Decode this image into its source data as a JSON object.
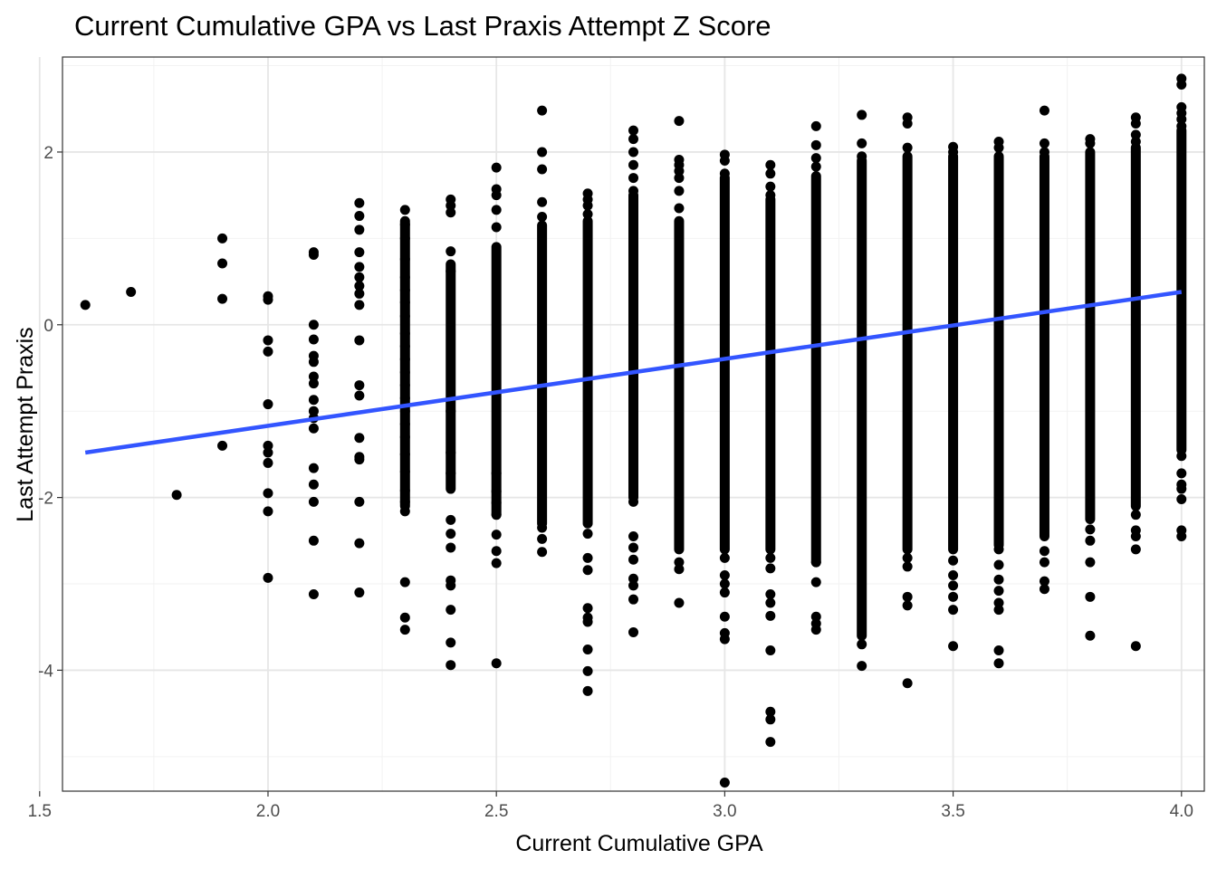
{
  "chart_data": {
    "type": "scatter",
    "title": "Current Cumulative GPA vs Last Praxis Attempt Z Score",
    "xlabel": "Current Cumulative GPA",
    "ylabel": "Last Attempt Praxis",
    "xlim": [
      1.55,
      4.05
    ],
    "ylim": [
      -5.4,
      3.1
    ],
    "x_ticks": [
      1.5,
      2.0,
      2.5,
      3.0,
      3.5,
      4.0
    ],
    "x_tick_labels": [
      "1.5",
      "2.0",
      "2.5",
      "3.0",
      "3.5",
      "4.0"
    ],
    "y_ticks": [
      -4,
      -2,
      0,
      2
    ],
    "y_tick_labels": [
      "-4",
      "-2",
      "0",
      "2"
    ],
    "grid": true,
    "point_color": "#000000",
    "trend_color": "#3355ff",
    "trend_line": {
      "x": [
        1.6,
        4.0
      ],
      "y": [
        -1.48,
        0.38
      ]
    },
    "columns": [
      {
        "x": 1.6,
        "points": [
          0.23
        ]
      },
      {
        "x": 1.7,
        "points": [
          0.38
        ]
      },
      {
        "x": 1.8,
        "points": [
          -1.97
        ]
      },
      {
        "x": 1.9,
        "points": [
          1.0,
          0.71,
          0.3,
          -1.4
        ]
      },
      {
        "x": 2.0,
        "points": [
          0.33,
          0.29,
          -0.18,
          -0.31,
          -0.92,
          -1.4,
          -1.48,
          -1.6,
          -1.95,
          -2.16,
          -2.93
        ]
      },
      {
        "x": 2.1,
        "points": [
          0.84,
          0.81,
          0.0,
          -0.17,
          -0.36,
          -0.43,
          -0.6,
          -0.68,
          -0.87,
          -1.0,
          -1.08,
          -1.2,
          -1.66,
          -1.85,
          -2.05,
          -2.5,
          -3.12
        ]
      },
      {
        "x": 2.2,
        "points": [
          1.41,
          1.26,
          1.1,
          0.84,
          0.67,
          0.55,
          0.45,
          0.36,
          0.23,
          -0.18,
          -0.7,
          -0.82,
          -1.31,
          -1.53,
          -1.56,
          -2.05,
          -2.53,
          -3.1
        ]
      },
      {
        "x": 2.3,
        "points": [
          1.33,
          1.16,
          1.0,
          0.76,
          0.55,
          0.4,
          0.26,
          0.1,
          -0.1,
          -0.25,
          -0.4,
          -0.55,
          -0.7,
          -0.85,
          -1.0,
          -1.15,
          -1.3,
          -1.5,
          -1.7,
          -1.92,
          -2.05,
          -2.16,
          -2.98,
          -3.39,
          -3.53
        ],
        "range": [
          -2.1,
          1.2
        ]
      },
      {
        "x": 2.4,
        "points": [
          1.45,
          1.38,
          1.3,
          0.85,
          0.62,
          -1.0,
          -1.48,
          -1.72,
          -2.26,
          -2.42,
          -2.58,
          -2.96,
          -3.02,
          -3.3,
          -3.68,
          -3.94
        ],
        "range": [
          -1.9,
          0.7
        ]
      },
      {
        "x": 2.5,
        "points": [
          1.82,
          1.57,
          1.5,
          1.33,
          1.13,
          -1.72,
          -1.93,
          -2.06,
          -2.2,
          -2.43,
          -2.62,
          -2.76,
          -3.92
        ],
        "range": [
          -2.2,
          0.9
        ]
      },
      {
        "x": 2.6,
        "points": [
          2.48,
          2.0,
          1.8,
          1.42,
          1.25,
          -2.35,
          -2.48,
          -2.63
        ],
        "range": [
          -2.3,
          1.15
        ]
      },
      {
        "x": 2.7,
        "points": [
          1.52,
          1.45,
          1.38,
          1.28,
          -2.42,
          -2.7,
          -2.84,
          -3.28,
          -3.39,
          -3.44,
          -3.76,
          -4.01,
          -4.24
        ],
        "range": [
          -2.3,
          1.2
        ]
      },
      {
        "x": 2.8,
        "points": [
          2.25,
          2.15,
          2.0,
          1.85,
          1.7,
          1.55,
          -2.05,
          -2.45,
          -2.58,
          -2.72,
          -2.94,
          -3.02,
          -3.18,
          -3.56
        ],
        "range": [
          -2.0,
          1.5
        ]
      },
      {
        "x": 2.9,
        "points": [
          2.36,
          1.91,
          1.85,
          1.78,
          1.7,
          1.55,
          1.35,
          -2.75,
          -2.83,
          -3.22
        ],
        "range": [
          -2.6,
          1.2
        ]
      },
      {
        "x": 3.0,
        "points": [
          1.97,
          1.9,
          1.75,
          -2.7,
          -2.9,
          -3.0,
          -3.1,
          -3.38,
          -3.57,
          -3.64,
          -5.3
        ],
        "range": [
          -2.6,
          1.7
        ]
      },
      {
        "x": 3.1,
        "points": [
          1.85,
          1.75,
          1.6,
          1.5,
          -2.7,
          -2.82,
          -3.12,
          -3.22,
          -3.37,
          -3.77,
          -4.48,
          -4.57,
          -4.83
        ],
        "range": [
          -2.6,
          1.45
        ]
      },
      {
        "x": 3.2,
        "points": [
          2.3,
          2.08,
          1.93,
          1.83,
          1.72,
          -2.75,
          -2.98,
          -3.38,
          -3.46,
          -3.53
        ],
        "range": [
          -2.75,
          1.7
        ]
      },
      {
        "x": 3.3,
        "points": [
          2.43,
          2.1,
          1.95,
          -3.7,
          -3.95
        ],
        "range": [
          -3.6,
          1.9
        ]
      },
      {
        "x": 3.4,
        "points": [
          2.4,
          2.33,
          2.05,
          -2.7,
          -2.8,
          -3.15,
          -3.25,
          -4.15
        ],
        "range": [
          -2.6,
          1.95
        ]
      },
      {
        "x": 3.5,
        "points": [
          2.06,
          2.0,
          -2.73,
          -2.9,
          -3.02,
          -3.15,
          -3.3,
          -3.72
        ],
        "range": [
          -2.6,
          1.95
        ]
      },
      {
        "x": 3.6,
        "points": [
          2.12,
          2.05,
          -2.6,
          -2.78,
          -2.95,
          -3.08,
          -3.22,
          -3.3,
          -3.77,
          -3.92
        ],
        "range": [
          -2.55,
          1.95
        ]
      },
      {
        "x": 3.7,
        "points": [
          2.48,
          2.1,
          2.0,
          -2.62,
          -2.75,
          -2.97,
          -3.06
        ],
        "range": [
          -2.45,
          1.95
        ]
      },
      {
        "x": 3.8,
        "points": [
          2.15,
          2.1,
          -2.37,
          -2.5,
          -2.75,
          -3.15,
          -3.6
        ],
        "range": [
          -2.25,
          2.0
        ]
      },
      {
        "x": 3.9,
        "points": [
          2.4,
          2.33,
          2.2,
          2.12,
          -2.2,
          -2.38,
          -2.45,
          -2.6,
          -3.72
        ],
        "range": [
          -2.1,
          2.05
        ]
      },
      {
        "x": 4.0,
        "points": [
          2.85,
          2.78,
          2.52,
          2.45,
          2.38,
          2.3,
          -1.52,
          -1.72,
          -1.85,
          -1.9,
          -2.02,
          -2.38,
          -2.45
        ],
        "range": [
          -1.45,
          2.25
        ]
      }
    ]
  }
}
